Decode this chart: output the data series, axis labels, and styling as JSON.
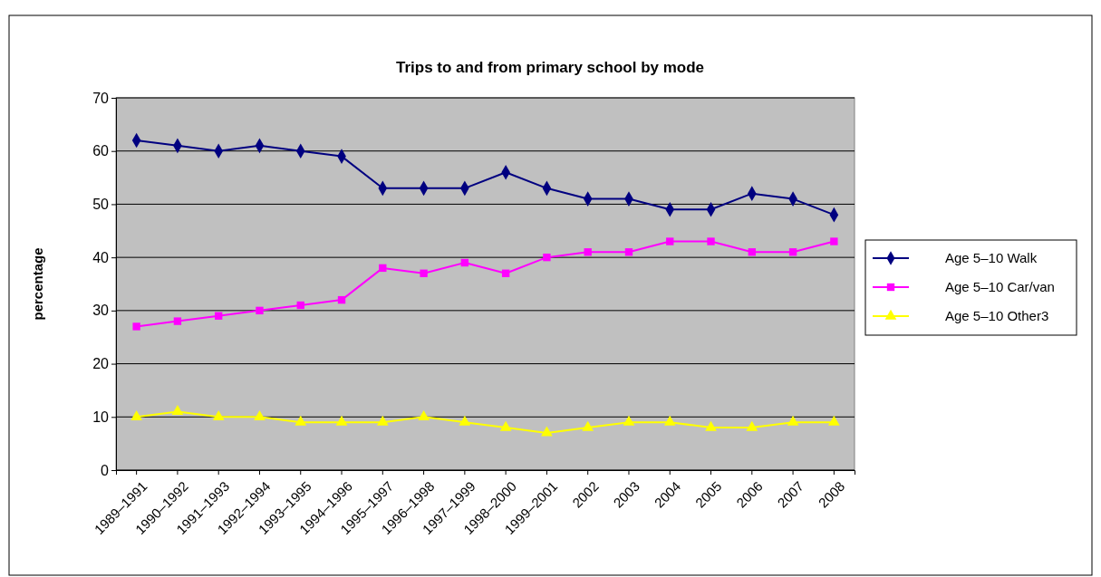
{
  "chart_data": {
    "type": "line",
    "title": "Trips to and from primary school by mode",
    "ylabel": "percentage",
    "categories": [
      "1989–1991",
      "1990–1992",
      "1991–1993",
      "1992–1994",
      "1993–1995",
      "1994–1996",
      "1995–1997",
      "1996–1998",
      "1997–1999",
      "1998–2000",
      "1999–2001",
      "2002",
      "2003",
      "2004",
      "2005",
      "2006",
      "2007",
      "2008"
    ],
    "series": [
      {
        "name": "Age 5–10 Walk",
        "color": "#000080",
        "marker": "diamond",
        "values": [
          62,
          61,
          60,
          61,
          60,
          59,
          53,
          53,
          53,
          56,
          53,
          51,
          51,
          49,
          49,
          52,
          51,
          48
        ]
      },
      {
        "name": "Age 5–10 Car/van",
        "color": "#ff00ff",
        "marker": "square",
        "values": [
          27,
          28,
          29,
          30,
          31,
          32,
          38,
          37,
          39,
          37,
          40,
          41,
          41,
          43,
          43,
          41,
          41,
          43
        ]
      },
      {
        "name": "Age 5–10 Other3",
        "color": "#ffff00",
        "marker": "triangle",
        "values": [
          10,
          11,
          10,
          10,
          9,
          9,
          9,
          10,
          9,
          8,
          7,
          8,
          9,
          9,
          8,
          8,
          9,
          9
        ]
      }
    ],
    "ylim": [
      0,
      70
    ],
    "yticks": [
      0,
      10,
      20,
      30,
      40,
      50,
      60,
      70
    ],
    "grid": "y",
    "legend": "right",
    "line_style": "solid"
  }
}
